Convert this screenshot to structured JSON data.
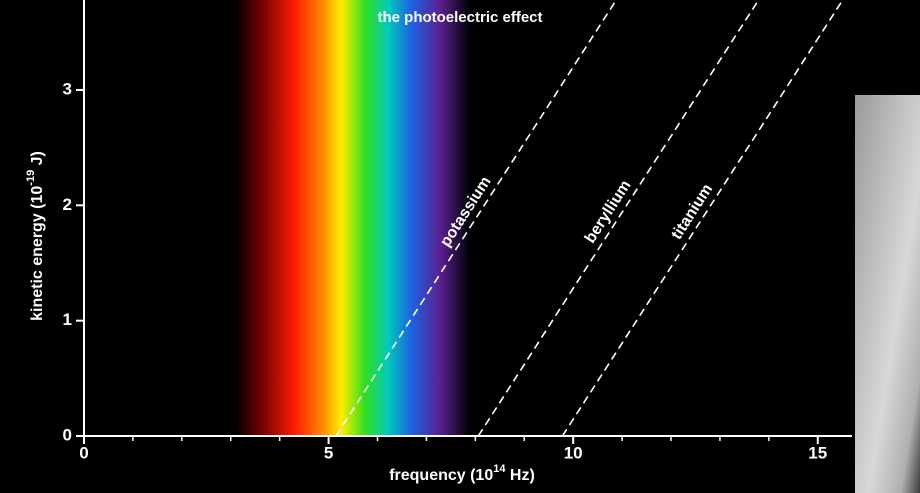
{
  "chart_data": {
    "type": "line",
    "title": "the photoelectric effect",
    "xlabel": [
      "frequency (10",
      "14",
      " Hz)"
    ],
    "ylabel": [
      "kinetic energy (10",
      "-19",
      " J)"
    ],
    "xlim": [
      0,
      15.7
    ],
    "ylim": [
      0,
      3.78
    ],
    "xticks": [
      0,
      5,
      10,
      15
    ],
    "xminor_ticks": [
      1,
      2,
      3,
      4,
      6,
      7,
      8,
      9,
      11,
      12,
      13,
      14
    ],
    "yticks": [
      0,
      1,
      2,
      3
    ],
    "spectrum": [
      3.1,
      7.9
    ],
    "series": [
      {
        "name": "potassium",
        "color": "#ffffff",
        "x": [
          5.15,
          10.88
        ],
        "values": [
          0,
          3.78
        ]
      },
      {
        "name": "beryllium",
        "color": "#ffffff",
        "x": [
          8.06,
          13.79
        ],
        "values": [
          0,
          3.78
        ]
      },
      {
        "name": "titanium",
        "color": "#ffffff",
        "x": [
          9.78,
          15.51
        ],
        "values": [
          0,
          3.78
        ]
      }
    ]
  }
}
